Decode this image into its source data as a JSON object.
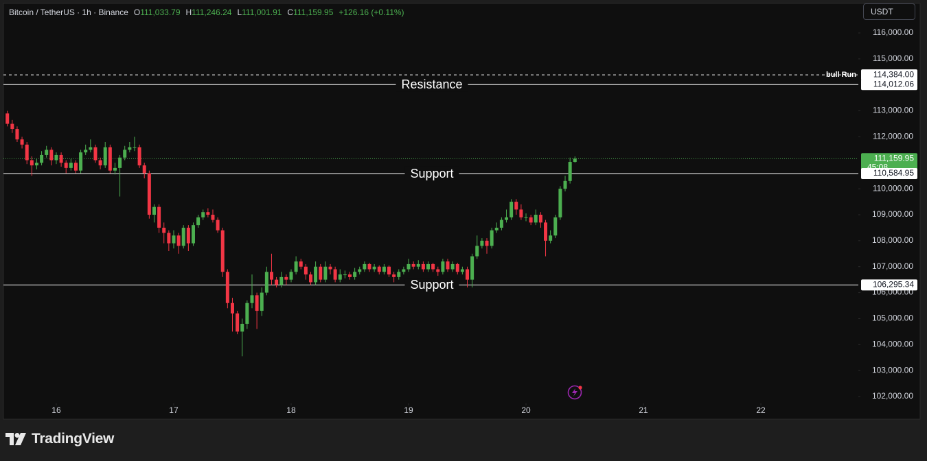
{
  "header": {
    "symbol": "Bitcoin / TetherUS · 1h · Binance",
    "fields": [
      {
        "key": "O",
        "value": "111,033.79"
      },
      {
        "key": "H",
        "value": "111,246.24"
      },
      {
        "key": "L",
        "value": "111,001.91"
      },
      {
        "key": "C",
        "value": "111,159.95"
      }
    ],
    "change": "+126.16 (+0.11%)"
  },
  "currency_button": "USDT",
  "footer": {
    "brand": "TradingView"
  },
  "chart_data": {
    "type": "candlestick",
    "up_color": "#4caf50",
    "down_color": "#f23645",
    "x": [
      15.5833,
      15.625,
      15.6667,
      15.7083,
      15.75,
      15.7917,
      15.8333,
      15.875,
      15.9167,
      15.9583,
      16,
      16.0417,
      16.0833,
      16.125,
      16.1667,
      16.2083,
      16.25,
      16.2917,
      16.3333,
      16.375,
      16.4167,
      16.4583,
      16.5,
      16.5417,
      16.5833,
      16.625,
      16.6667,
      16.7083,
      16.75,
      16.7917,
      16.8333,
      16.875,
      16.9167,
      16.9583,
      17,
      17.0417,
      17.0833,
      17.125,
      17.1667,
      17.2083,
      17.25,
      17.2917,
      17.3333,
      17.375,
      17.4167,
      17.4583,
      17.5,
      17.5417,
      17.5833,
      17.625,
      17.6667,
      17.7083,
      17.75,
      17.7917,
      17.8333,
      17.875,
      17.9167,
      17.9583,
      18,
      18.0417,
      18.0833,
      18.125,
      18.1667,
      18.2083,
      18.25,
      18.2917,
      18.3333,
      18.375,
      18.4167,
      18.4583,
      18.5,
      18.5417,
      18.5833,
      18.625,
      18.6667,
      18.7083,
      18.75,
      18.7917,
      18.8333,
      18.875,
      18.9167,
      18.9583,
      19,
      19.0417,
      19.0833,
      19.125,
      19.1667,
      19.2083,
      19.25,
      19.2917,
      19.3333,
      19.375,
      19.4167,
      19.4583,
      19.5,
      19.5417,
      19.5833,
      19.625,
      19.6667,
      19.7083,
      19.75,
      19.7917,
      19.8333,
      19.875,
      19.9167,
      19.9583,
      20,
      20.0417,
      20.0833,
      20.125,
      20.1667,
      20.2083,
      20.25,
      20.2917,
      20.3333,
      20.375,
      20.4167
    ],
    "open": [
      112900,
      112500,
      112300,
      111900,
      111700,
      111100,
      110900,
      111000,
      111300,
      111500,
      111100,
      111300,
      111000,
      110800,
      111000,
      110700,
      111400,
      111500,
      111600,
      111100,
      110900,
      111600,
      110700,
      110800,
      111200,
      111500,
      111600,
      111600,
      110900,
      110600,
      109000,
      109300,
      108500,
      108300,
      107900,
      108200,
      107800,
      108500,
      107900,
      108600,
      108900,
      109100,
      109000,
      108800,
      108400,
      106800,
      105600,
      105200,
      104500,
      104800,
      105600,
      105900,
      105300,
      106000,
      106800,
      106500,
      106300,
      106600,
      106500,
      106800,
      107200,
      107000,
      106700,
      106400,
      107000,
      106500,
      107000,
      106900,
      106500,
      106700,
      106700,
      106600,
      106800,
      106900,
      107100,
      106900,
      107000,
      106800,
      107000,
      106700,
      106600,
      106800,
      106900,
      107100,
      107000,
      107100,
      106900,
      107100,
      106900,
      106800,
      107200,
      106900,
      107100,
      106800,
      106900,
      106500,
      107400,
      107800,
      108000,
      107800,
      108400,
      108500,
      108800,
      108900,
      109500,
      109200,
      108900,
      108900,
      108700,
      109000,
      108700,
      108000,
      108200,
      108900,
      110000,
      110300,
      111033.79
    ],
    "high": [
      113000,
      112650,
      112400,
      112000,
      111800,
      111250,
      111150,
      111450,
      111650,
      111600,
      111400,
      111400,
      111100,
      111150,
      111100,
      111500,
      111700,
      111900,
      111700,
      111200,
      111800,
      111700,
      111000,
      111300,
      111650,
      111800,
      112000,
      111700,
      111000,
      110700,
      109400,
      109400,
      108700,
      108400,
      108400,
      108300,
      108600,
      108600,
      108700,
      109000,
      109200,
      109250,
      109200,
      108900,
      108500,
      106900,
      105800,
      105300,
      105000,
      105700,
      106700,
      106000,
      106200,
      107000,
      107500,
      106600,
      106800,
      106700,
      106900,
      107400,
      107300,
      107100,
      106800,
      107200,
      107100,
      107200,
      107100,
      107000,
      106900,
      106850,
      106800,
      106950,
      107000,
      107200,
      107150,
      107100,
      107050,
      107100,
      107050,
      106800,
      106900,
      107000,
      107300,
      107200,
      107250,
      107200,
      107200,
      107150,
      107000,
      107300,
      107300,
      107200,
      107150,
      107000,
      107000,
      107500,
      108200,
      108100,
      108100,
      108500,
      108700,
      108900,
      109200,
      109600,
      109600,
      109400,
      109050,
      109000,
      109200,
      109100,
      108800,
      108400,
      109000,
      110100,
      110500,
      111200,
      111246.24
    ],
    "low": [
      112400,
      112150,
      111800,
      111550,
      110950,
      110500,
      110750,
      110900,
      111200,
      110900,
      110950,
      110850,
      110600,
      110700,
      110600,
      110600,
      111300,
      111400,
      111000,
      110750,
      110800,
      110600,
      110550,
      109700,
      111100,
      111400,
      111450,
      110800,
      110400,
      108850,
      108700,
      108300,
      107900,
      107600,
      107700,
      107500,
      107700,
      107600,
      107800,
      108500,
      108800,
      108900,
      108700,
      108300,
      106600,
      105400,
      104500,
      104400,
      103550,
      104600,
      105400,
      104600,
      105100,
      105900,
      106300,
      106200,
      106200,
      106300,
      106400,
      106700,
      106900,
      106500,
      106300,
      106300,
      106400,
      106400,
      106700,
      106400,
      106400,
      106550,
      106500,
      106500,
      106700,
      106800,
      106800,
      106800,
      106700,
      106700,
      106600,
      106400,
      106500,
      106700,
      106800,
      106900,
      106900,
      106800,
      106800,
      106800,
      106650,
      106700,
      106800,
      106800,
      106700,
      106700,
      106200,
      106200,
      107300,
      107700,
      107500,
      107700,
      108300,
      108400,
      108700,
      108800,
      109000,
      108800,
      108750,
      108600,
      108600,
      108500,
      107400,
      107900,
      108100,
      108800,
      109900,
      110200,
      111001.91
    ],
    "close": [
      112500,
      112300,
      111900,
      111700,
      111100,
      110900,
      111000,
      111300,
      111500,
      111100,
      111300,
      111000,
      110800,
      111000,
      110700,
      111400,
      111500,
      111600,
      111100,
      110900,
      111600,
      110700,
      110800,
      111200,
      111500,
      111600,
      111600,
      110900,
      110600,
      109000,
      109300,
      108500,
      108300,
      107900,
      108200,
      107800,
      108500,
      107900,
      108600,
      108900,
      109100,
      109000,
      108800,
      108400,
      106800,
      105600,
      105200,
      104500,
      104800,
      105600,
      105900,
      105300,
      106000,
      106800,
      106500,
      106300,
      106600,
      106500,
      106800,
      107200,
      107000,
      106700,
      106400,
      107000,
      106500,
      107000,
      106900,
      106500,
      106700,
      106700,
      106600,
      106800,
      106900,
      107100,
      106900,
      107000,
      106800,
      107000,
      106700,
      106600,
      106800,
      106900,
      107100,
      107000,
      107100,
      106900,
      107100,
      106900,
      106800,
      107200,
      106900,
      107100,
      106800,
      106900,
      106500,
      107400,
      107800,
      108000,
      107800,
      108400,
      108500,
      108800,
      108900,
      109500,
      109200,
      108900,
      108900,
      108700,
      109000,
      108700,
      108000,
      108200,
      108900,
      110000,
      110300,
      111033.79,
      111159.95
    ],
    "xlim": [
      15.55,
      22.83
    ],
    "ylim": [
      101736,
      117136
    ],
    "xticks": [
      16,
      17,
      18,
      19,
      20,
      21,
      22
    ],
    "yticks": [
      {
        "value": 116000,
        "label": "116,000.00"
      },
      {
        "value": 115000,
        "label": "115,000.00"
      },
      {
        "value": 113000,
        "label": "113,000.00"
      },
      {
        "value": 112000,
        "label": "112,000.00"
      },
      {
        "value": 110000,
        "label": "110,000.00"
      },
      {
        "value": 109000,
        "label": "109,000.00"
      },
      {
        "value": 108000,
        "label": "108,000.00"
      },
      {
        "value": 107000,
        "label": "107,000.00"
      },
      {
        "value": 106000,
        "label": "106,000.00"
      },
      {
        "value": 105000,
        "label": "105,000.00"
      },
      {
        "value": 104000,
        "label": "104,000.00"
      },
      {
        "value": 103000,
        "label": "103,000.00"
      },
      {
        "value": 102000,
        "label": "102,000.00"
      }
    ],
    "grid": false,
    "last_price": {
      "value": 111159.95,
      "label": "111,159.95",
      "countdown": "45:08",
      "color": "#4caf50"
    },
    "hlines": [
      {
        "value": 114384.0,
        "label": "bull Run",
        "price_label": "114,384.00",
        "style": "dashed",
        "label_position": "right"
      },
      {
        "value": 114012.06,
        "label": "Resistance",
        "price_label": "114,012.06",
        "style": "solid",
        "label_position": "center"
      },
      {
        "value": 110584.95,
        "label": "Support",
        "price_label": "110,584.95",
        "style": "solid",
        "label_position": "center"
      },
      {
        "value": 106295.34,
        "label": "Support",
        "price_label": "106,295.34",
        "style": "solid",
        "label_position": "center"
      }
    ]
  }
}
